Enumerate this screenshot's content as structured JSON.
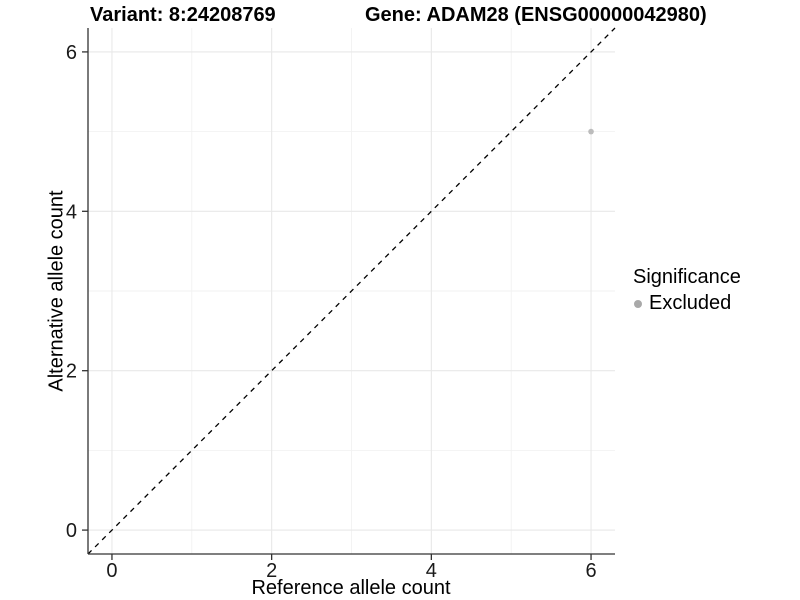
{
  "header": {
    "variant_title": "Variant: 8:24208769",
    "gene_title": "Gene: ADAM28 (ENSG00000042980)"
  },
  "chart_data": {
    "type": "scatter",
    "title": "Variant: 8:24208769   Gene: ADAM28 (ENSG00000042980)",
    "xlabel": "Reference allele count",
    "ylabel": "Alternative allele count",
    "xlim": [
      -0.3,
      6.3
    ],
    "ylim": [
      -0.3,
      6.3
    ],
    "xticks": [
      0,
      2,
      4,
      6
    ],
    "yticks": [
      0,
      2,
      4,
      6
    ],
    "xticks_minor": [
      1,
      3,
      5
    ],
    "yticks_minor": [
      1,
      3,
      5
    ],
    "grid": "major and minor, light grey on white",
    "reference_line": {
      "type": "identity y=x",
      "style": "dashed",
      "color": "#000000",
      "from": [
        -0.3,
        -0.3
      ],
      "to": [
        6.3,
        6.3
      ]
    },
    "series": [
      {
        "name": "Excluded",
        "color": "#b0b0b0",
        "points": [
          {
            "x": 6,
            "y": 5
          }
        ]
      }
    ],
    "legend": {
      "title": "Significance",
      "position": "right",
      "items": [
        {
          "label": "Excluded",
          "color": "#a9a9a9"
        }
      ]
    }
  },
  "colors": {
    "background": "#ffffff",
    "grid_major": "#e8e8e8",
    "grid_minor": "#f2f2f2",
    "axis_line": "#333333",
    "tick_text": "#1a1a1a",
    "point": "#bcbcbc"
  }
}
